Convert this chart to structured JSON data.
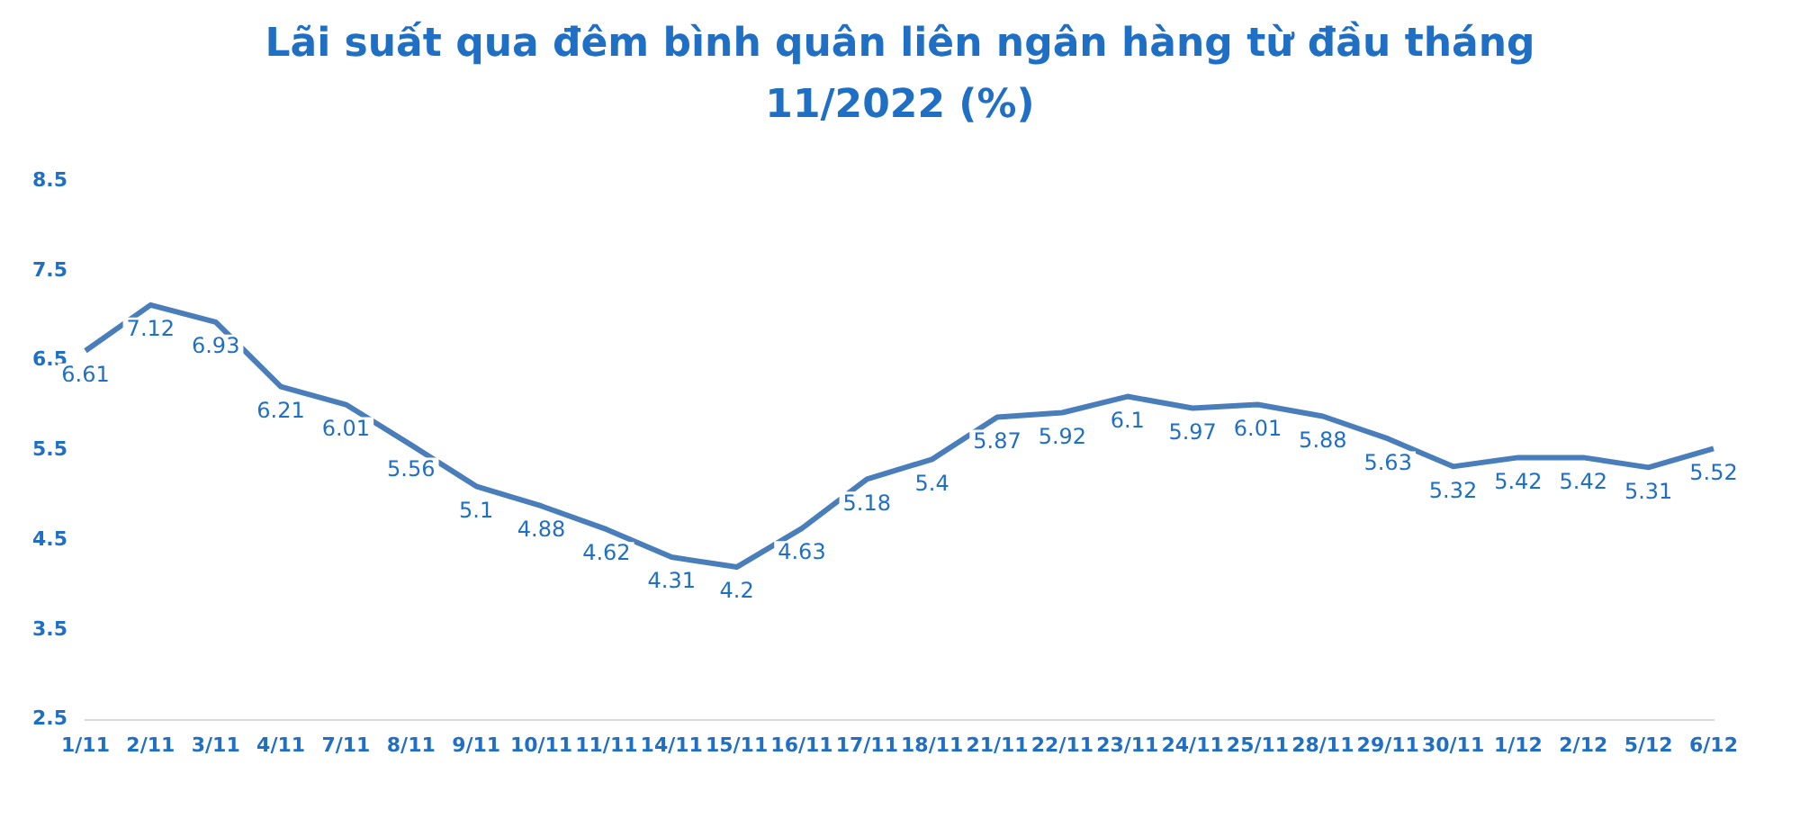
{
  "chart_data": {
    "type": "line",
    "title": "Lãi suất qua đêm bình quân liên ngân hàng từ đầu tháng 11/2022 (%)",
    "categories": [
      "1/11",
      "2/11",
      "3/11",
      "4/11",
      "7/11",
      "8/11",
      "9/11",
      "10/11",
      "11/11",
      "14/11",
      "15/11",
      "16/11",
      "17/11",
      "18/11",
      "21/11",
      "22/11",
      "23/11",
      "24/11",
      "25/11",
      "28/11",
      "29/11",
      "30/11",
      "1/12",
      "2/12",
      "5/12",
      "6/12"
    ],
    "values": [
      6.61,
      7.12,
      6.93,
      6.21,
      6.01,
      5.56,
      5.1,
      4.88,
      4.62,
      4.31,
      4.2,
      4.63,
      5.18,
      5.4,
      5.87,
      5.92,
      6.1,
      5.97,
      6.01,
      5.88,
      5.63,
      5.32,
      5.42,
      5.42,
      5.31,
      5.52
    ],
    "color": "#4a7ebb",
    "ylim": [
      2.5,
      8.5
    ],
    "yticks": [
      2.5,
      3.5,
      4.5,
      5.5,
      6.5,
      7.5,
      8.5
    ],
    "grid": false,
    "legend": false,
    "marker": "none",
    "data_labels": true
  }
}
